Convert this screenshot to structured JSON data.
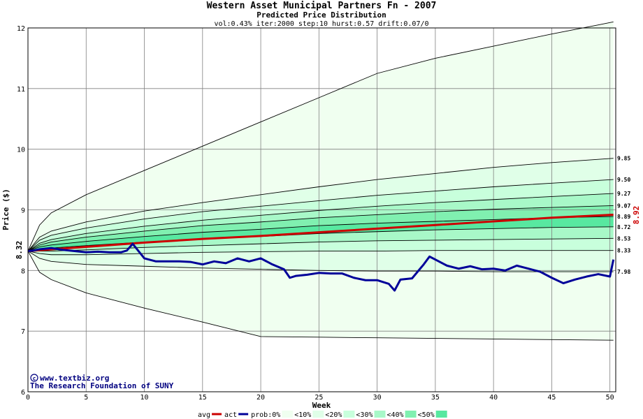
{
  "chart_data": {
    "type": "line",
    "title": "Western Asset Municipal Partners Fn - 2007",
    "subtitle": "Predicted Price Distribution",
    "params": "vol:0.43% iter:2000 step:10 hurst:0.57 drift:0.07/0",
    "xlabel": "Week",
    "ylabel": "Price ($)",
    "xlim": [
      0,
      50.5
    ],
    "ylim": [
      6,
      12
    ],
    "x_ticks": [
      0,
      5,
      10,
      15,
      20,
      25,
      30,
      35,
      40,
      45,
      50
    ],
    "y_ticks": [
      6,
      7,
      8,
      9,
      10,
      11,
      12
    ],
    "grid": true,
    "start_price_label": "8.32",
    "end_price_label": "8.92",
    "colors": {
      "avg": "#cc0000",
      "actual": "#000099",
      "band_outer": "#f0fff0",
      "band_10": "#e0ffe8",
      "band_20": "#c8ffdc",
      "band_30": "#a8f8c8",
      "band_40": "#80f0b0",
      "band_50": "#58e8a0",
      "grid": "#808080"
    },
    "percentile_end_labels": [
      "9.85",
      "9.50",
      "9.27",
      "9.07",
      "8.89",
      "8.72",
      "8.53",
      "8.33",
      "7.98"
    ],
    "series": [
      {
        "name": "max",
        "x": [
          0,
          1,
          2,
          5,
          10,
          15,
          20,
          25,
          30,
          35,
          40,
          45,
          49,
          50.3
        ],
        "values": [
          8.32,
          8.75,
          8.95,
          9.25,
          9.65,
          10.05,
          10.45,
          10.85,
          11.25,
          11.5,
          11.7,
          11.9,
          12.05,
          12.1
        ]
      },
      {
        "name": "p95",
        "x": [
          0,
          1,
          2,
          5,
          10,
          15,
          20,
          25,
          30,
          35,
          40,
          45,
          50.3
        ],
        "values": [
          8.32,
          8.55,
          8.65,
          8.8,
          8.98,
          9.12,
          9.25,
          9.38,
          9.5,
          9.6,
          9.7,
          9.78,
          9.85
        ]
      },
      {
        "name": "p90",
        "x": [
          0,
          1,
          2,
          5,
          10,
          15,
          20,
          25,
          30,
          35,
          40,
          45,
          50.3
        ],
        "values": [
          8.32,
          8.5,
          8.58,
          8.7,
          8.85,
          8.97,
          9.06,
          9.15,
          9.24,
          9.31,
          9.38,
          9.44,
          9.5
        ]
      },
      {
        "name": "p80",
        "x": [
          0,
          1,
          2,
          5,
          10,
          15,
          20,
          25,
          30,
          35,
          40,
          45,
          50.3
        ],
        "values": [
          8.32,
          8.45,
          8.51,
          8.61,
          8.73,
          8.83,
          8.91,
          8.99,
          9.06,
          9.12,
          9.17,
          9.22,
          9.27
        ]
      },
      {
        "name": "p70",
        "x": [
          0,
          1,
          2,
          5,
          10,
          15,
          20,
          25,
          30,
          35,
          40,
          45,
          50.3
        ],
        "values": [
          8.32,
          8.42,
          8.47,
          8.55,
          8.65,
          8.74,
          8.8,
          8.87,
          8.92,
          8.97,
          9.01,
          9.04,
          9.07
        ]
      },
      {
        "name": "p60",
        "x": [
          0,
          1,
          2,
          5,
          10,
          15,
          20,
          25,
          30,
          35,
          40,
          45,
          50.3
        ],
        "values": [
          8.32,
          8.39,
          8.42,
          8.48,
          8.56,
          8.63,
          8.68,
          8.74,
          8.78,
          8.81,
          8.84,
          8.87,
          8.89
        ]
      },
      {
        "name": "p50",
        "x": [
          0,
          1,
          2,
          5,
          10,
          15,
          20,
          25,
          30,
          35,
          40,
          45,
          50.3
        ],
        "values": [
          8.32,
          8.35,
          8.37,
          8.41,
          8.47,
          8.52,
          8.56,
          8.61,
          8.64,
          8.67,
          8.69,
          8.71,
          8.72
        ]
      },
      {
        "name": "p40",
        "x": [
          0,
          1,
          2,
          5,
          10,
          15,
          20,
          25,
          30,
          35,
          40,
          45,
          50.3
        ],
        "values": [
          8.32,
          8.32,
          8.32,
          8.34,
          8.38,
          8.41,
          8.44,
          8.47,
          8.49,
          8.5,
          8.51,
          8.52,
          8.53
        ]
      },
      {
        "name": "p30",
        "x": [
          0,
          1,
          2,
          5,
          10,
          15,
          20,
          25,
          30,
          35,
          40,
          45,
          50.3
        ],
        "values": [
          8.32,
          8.28,
          8.26,
          8.26,
          8.28,
          8.3,
          8.31,
          8.32,
          8.32,
          8.33,
          8.33,
          8.33,
          8.33
        ]
      },
      {
        "name": "p20",
        "x": [
          0,
          1,
          2,
          5,
          10,
          15,
          20,
          25,
          30,
          35,
          40,
          45,
          50.3
        ],
        "values": [
          8.32,
          8.2,
          8.15,
          8.1,
          8.07,
          8.04,
          8.02,
          8.0,
          7.99,
          7.99,
          7.98,
          7.98,
          7.98
        ]
      },
      {
        "name": "min",
        "x": [
          0,
          1,
          2,
          5,
          10,
          15,
          20,
          25,
          30,
          35,
          40,
          45,
          50.3
        ],
        "values": [
          8.32,
          7.97,
          7.85,
          7.63,
          7.38,
          7.15,
          6.91,
          6.9,
          6.89,
          6.88,
          6.87,
          6.86,
          6.85
        ]
      },
      {
        "name": "avg",
        "x": [
          0,
          5,
          10,
          15,
          20,
          25,
          30,
          35,
          40,
          45,
          50.3
        ],
        "values": [
          8.32,
          8.39,
          8.46,
          8.52,
          8.57,
          8.63,
          8.69,
          8.75,
          8.81,
          8.87,
          8.92
        ]
      },
      {
        "name": "act",
        "x": [
          0,
          0.5,
          1,
          1.5,
          2,
          3,
          4,
          5,
          6,
          7,
          8,
          8.5,
          9,
          10,
          11,
          12,
          13,
          14,
          15,
          16,
          17,
          18,
          19,
          20,
          21,
          22,
          22.5,
          23,
          24,
          25,
          26,
          27,
          28,
          29,
          30,
          31,
          31.5,
          32,
          33,
          34,
          34.5,
          35,
          36,
          37,
          38,
          39,
          40,
          41,
          42,
          43,
          44,
          45,
          46,
          47,
          48,
          49,
          50,
          50.3
        ],
        "values": [
          8.32,
          8.33,
          8.35,
          8.36,
          8.37,
          8.34,
          8.32,
          8.3,
          8.31,
          8.3,
          8.3,
          8.33,
          8.44,
          8.2,
          8.15,
          8.15,
          8.15,
          8.14,
          8.1,
          8.15,
          8.12,
          8.2,
          8.15,
          8.2,
          8.1,
          8.02,
          7.88,
          7.91,
          7.93,
          7.96,
          7.95,
          7.95,
          7.88,
          7.84,
          7.84,
          7.78,
          7.67,
          7.85,
          7.87,
          8.1,
          8.23,
          8.18,
          8.08,
          8.03,
          8.07,
          8.02,
          8.03,
          8.0,
          8.08,
          8.03,
          7.98,
          7.88,
          7.79,
          7.85,
          7.9,
          7.94,
          7.9,
          8.18
        ]
      }
    ],
    "legend": {
      "items": [
        "avg",
        "act",
        "prob:0%",
        "<10%",
        "<20%",
        "<30%",
        "<40%",
        "<50%"
      ]
    },
    "credits": [
      "www.textbiz.org",
      "The Research Foundation of SUNY"
    ]
  }
}
